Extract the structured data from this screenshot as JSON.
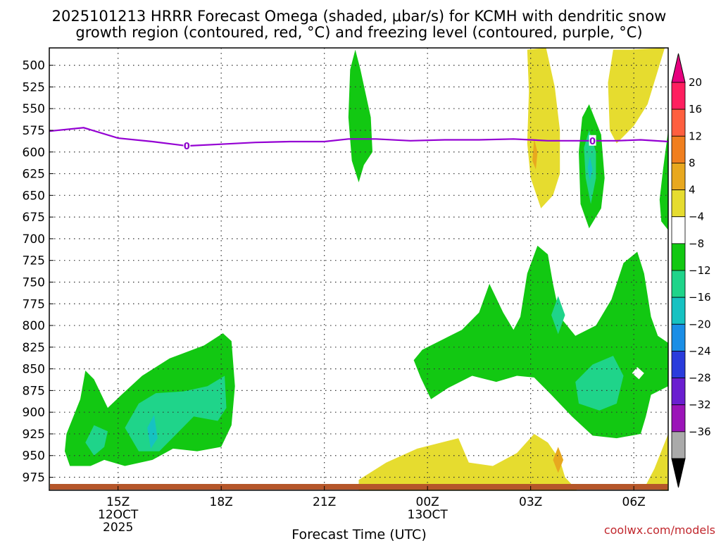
{
  "chart_data": {
    "type": "heatmap",
    "title_line1": "2025101213 HRRR Forecast Omega (shaded, μbar/s) for KCMH with dendritic snow",
    "title_line2": "growth region (contoured, red, °C) and freezing level (contoured, purple, °C)",
    "xlabel": "Forecast Time (UTC)",
    "credit": "coolwx.com/models",
    "x_ticks": [
      {
        "hour": 15,
        "label": "15Z",
        "sub1": "12OCT",
        "sub2": "2025"
      },
      {
        "hour": 18,
        "label": "18Z",
        "sub1": "",
        "sub2": ""
      },
      {
        "hour": 21,
        "label": "21Z",
        "sub1": "",
        "sub2": ""
      },
      {
        "hour": 24,
        "label": "00Z",
        "sub1": "13OCT",
        "sub2": ""
      },
      {
        "hour": 27,
        "label": "03Z",
        "sub1": "",
        "sub2": ""
      },
      {
        "hour": 30,
        "label": "06Z",
        "sub1": "",
        "sub2": ""
      }
    ],
    "x_range_hours": [
      13,
      31
    ],
    "y_range_hpa": [
      480,
      990
    ],
    "y_ticks": [
      500,
      525,
      550,
      575,
      600,
      625,
      650,
      675,
      700,
      725,
      750,
      775,
      800,
      825,
      850,
      875,
      900,
      925,
      950,
      975
    ],
    "colorbar": {
      "labels": [
        "20",
        "16",
        "12",
        "8",
        "4",
        "−4",
        "−8",
        "−12",
        "−16",
        "−20",
        "−24",
        "−28",
        "−32",
        "−36"
      ],
      "colors_top_to_bottom": [
        "#ff1f5f",
        "#ff5f3f",
        "#f07f1f",
        "#e8a81f",
        "#e6dc2f",
        "#ffffff",
        "#12c812",
        "#1fd48a",
        "#16c2c2",
        "#1a8ee6",
        "#2a3cdc",
        "#6a1fd0",
        "#9b14b8",
        "#aaaaaa"
      ],
      "top_arrow_color": "#e6007e",
      "bottom_arrow_color": "#000000"
    },
    "freezing_level": {
      "label": "0",
      "color": "#9400d3",
      "points": [
        [
          13.0,
          576
        ],
        [
          14.0,
          572
        ],
        [
          15.0,
          584
        ],
        [
          16.0,
          588
        ],
        [
          17.0,
          593
        ],
        [
          18.0,
          591
        ],
        [
          19.0,
          589
        ],
        [
          20.0,
          588
        ],
        [
          21.0,
          588
        ],
        [
          21.7,
          585
        ],
        [
          22.5,
          585
        ],
        [
          23.5,
          587
        ],
        [
          24.5,
          586
        ],
        [
          25.5,
          586
        ],
        [
          26.5,
          585
        ],
        [
          27.5,
          587
        ],
        [
          28.5,
          587
        ],
        [
          29.5,
          587
        ],
        [
          30.2,
          586
        ],
        [
          31.0,
          588
        ]
      ]
    },
    "ground_color": "#b5562a",
    "omega_regions": [
      {
        "kind": "green",
        "color": "#12c812",
        "points": [
          [
            13.5,
            925
          ],
          [
            13.9,
            885
          ],
          [
            14.05,
            852
          ],
          [
            14.3,
            862
          ],
          [
            14.7,
            895
          ],
          [
            15.1,
            880
          ],
          [
            15.7,
            858
          ],
          [
            16.5,
            838
          ],
          [
            17.5,
            823
          ],
          [
            18.05,
            809
          ],
          [
            18.3,
            818
          ],
          [
            18.4,
            870
          ],
          [
            18.3,
            915
          ],
          [
            18.0,
            940
          ],
          [
            17.3,
            945
          ],
          [
            16.6,
            942
          ],
          [
            16.0,
            955
          ],
          [
            15.2,
            962
          ],
          [
            14.6,
            955
          ],
          [
            14.2,
            962
          ],
          [
            13.6,
            962
          ],
          [
            13.45,
            945
          ]
        ]
      },
      {
        "kind": "med",
        "color": "#1fd48a",
        "points": [
          [
            14.3,
            915
          ],
          [
            14.7,
            922
          ],
          [
            14.6,
            940
          ],
          [
            14.3,
            950
          ],
          [
            14.05,
            935
          ]
        ]
      },
      {
        "kind": "med",
        "color": "#1fd48a",
        "points": [
          [
            15.2,
            918
          ],
          [
            15.6,
            890
          ],
          [
            16.1,
            878
          ],
          [
            16.9,
            876
          ],
          [
            17.6,
            870
          ],
          [
            18.1,
            858
          ],
          [
            18.15,
            895
          ],
          [
            17.9,
            910
          ],
          [
            17.2,
            905
          ],
          [
            16.7,
            925
          ],
          [
            16.2,
            945
          ],
          [
            15.6,
            945
          ]
        ]
      },
      {
        "kind": "cyan",
        "color": "#16c2c2",
        "points": [
          [
            15.85,
            918
          ],
          [
            16.05,
            903
          ],
          [
            16.15,
            930
          ],
          [
            15.95,
            942
          ]
        ]
      },
      {
        "kind": "green",
        "color": "#12c812",
        "points": [
          [
            21.9,
            482
          ],
          [
            22.05,
            505
          ],
          [
            22.35,
            560
          ],
          [
            22.4,
            600
          ],
          [
            22.15,
            615
          ],
          [
            22.0,
            635
          ],
          [
            21.8,
            610
          ],
          [
            21.7,
            560
          ],
          [
            21.75,
            505
          ]
        ]
      },
      {
        "kind": "green",
        "color": "#12c812",
        "points": [
          [
            23.6,
            840
          ],
          [
            23.85,
            828
          ],
          [
            24.5,
            815
          ],
          [
            25.0,
            805
          ],
          [
            25.5,
            785
          ],
          [
            25.8,
            752
          ],
          [
            26.2,
            785
          ],
          [
            26.5,
            805
          ],
          [
            26.7,
            790
          ],
          [
            26.9,
            740
          ],
          [
            27.2,
            708
          ],
          [
            27.5,
            718
          ],
          [
            27.65,
            752
          ],
          [
            27.85,
            790
          ],
          [
            28.3,
            812
          ],
          [
            28.9,
            800
          ],
          [
            29.35,
            770
          ],
          [
            29.7,
            728
          ],
          [
            30.1,
            715
          ],
          [
            30.3,
            740
          ],
          [
            30.5,
            790
          ],
          [
            30.7,
            812
          ],
          [
            31.0,
            820
          ],
          [
            31.0,
            870
          ],
          [
            30.75,
            875
          ],
          [
            30.5,
            880
          ],
          [
            30.35,
            905
          ],
          [
            30.2,
            925
          ],
          [
            29.5,
            930
          ],
          [
            28.8,
            927
          ],
          [
            28.2,
            905
          ],
          [
            27.6,
            880
          ],
          [
            27.1,
            860
          ],
          [
            26.6,
            858
          ],
          [
            26.0,
            865
          ],
          [
            25.3,
            858
          ],
          [
            24.6,
            872
          ],
          [
            24.1,
            885
          ],
          [
            23.8,
            860
          ]
        ]
      },
      {
        "kind": "med",
        "color": "#1fd48a",
        "points": [
          [
            27.8,
            766
          ],
          [
            28.0,
            788
          ],
          [
            27.8,
            810
          ],
          [
            27.6,
            788
          ]
        ]
      },
      {
        "kind": "med",
        "color": "#1fd48a",
        "points": [
          [
            28.3,
            865
          ],
          [
            28.8,
            845
          ],
          [
            29.4,
            835
          ],
          [
            29.7,
            858
          ],
          [
            29.5,
            890
          ],
          [
            29.0,
            898
          ],
          [
            28.4,
            890
          ]
        ]
      },
      {
        "kind": "white",
        "color": "#ffffff",
        "points": [
          [
            30.1,
            848
          ],
          [
            30.3,
            855
          ],
          [
            30.15,
            862
          ],
          [
            29.95,
            855
          ]
        ]
      },
      {
        "kind": "green",
        "color": "#12c812",
        "points": [
          [
            28.7,
            545
          ],
          [
            29.05,
            580
          ],
          [
            29.15,
            630
          ],
          [
            29.05,
            665
          ],
          [
            28.7,
            688
          ],
          [
            28.45,
            660
          ],
          [
            28.4,
            600
          ],
          [
            28.5,
            560
          ]
        ]
      },
      {
        "kind": "med",
        "color": "#1fd48a",
        "points": [
          [
            28.7,
            575
          ],
          [
            28.9,
            600
          ],
          [
            28.9,
            630
          ],
          [
            28.75,
            660
          ],
          [
            28.6,
            630
          ],
          [
            28.55,
            595
          ]
        ]
      },
      {
        "kind": "cyan",
        "color": "#16c2c2",
        "points": [
          [
            28.72,
            605
          ],
          [
            28.8,
            620
          ],
          [
            28.72,
            633
          ],
          [
            28.66,
            618
          ]
        ]
      },
      {
        "kind": "green",
        "color": "#12c812",
        "points": [
          [
            31.0,
            575
          ],
          [
            30.85,
            620
          ],
          [
            30.75,
            655
          ],
          [
            30.8,
            680
          ],
          [
            31.0,
            690
          ]
        ]
      },
      {
        "kind": "yellow",
        "color": "#e6dc2f",
        "points": [
          [
            26.9,
            482
          ],
          [
            27.45,
            480
          ],
          [
            27.7,
            525
          ],
          [
            27.85,
            575
          ],
          [
            27.85,
            625
          ],
          [
            27.65,
            650
          ],
          [
            27.3,
            665
          ],
          [
            27.0,
            630
          ],
          [
            26.9,
            590
          ],
          [
            26.95,
            530
          ]
        ]
      },
      {
        "kind": "orange",
        "color": "#e8a81f",
        "points": [
          [
            27.1,
            585
          ],
          [
            27.2,
            600
          ],
          [
            27.15,
            620
          ],
          [
            27.05,
            610
          ]
        ]
      },
      {
        "kind": "yellow",
        "color": "#e6dc2f",
        "points": [
          [
            29.9,
            482
          ],
          [
            30.9,
            480
          ],
          [
            30.4,
            545
          ],
          [
            30.0,
            570
          ],
          [
            29.5,
            590
          ],
          [
            29.3,
            575
          ],
          [
            29.25,
            520
          ],
          [
            29.4,
            482
          ]
        ]
      },
      {
        "kind": "yellow",
        "color": "#e6dc2f",
        "points": [
          [
            22.0,
            978
          ],
          [
            22.8,
            958
          ],
          [
            23.7,
            942
          ],
          [
            24.9,
            930
          ],
          [
            25.2,
            958
          ],
          [
            25.9,
            962
          ],
          [
            26.6,
            947
          ],
          [
            27.1,
            925
          ],
          [
            27.5,
            935
          ],
          [
            27.85,
            955
          ],
          [
            28.0,
            975
          ],
          [
            28.35,
            990
          ],
          [
            22.0,
            990
          ]
        ]
      },
      {
        "kind": "orange",
        "color": "#e8a81f",
        "points": [
          [
            27.8,
            940
          ],
          [
            27.95,
            955
          ],
          [
            27.8,
            970
          ],
          [
            27.65,
            955
          ]
        ]
      },
      {
        "kind": "yellow",
        "color": "#e6dc2f",
        "points": [
          [
            31.0,
            925
          ],
          [
            30.6,
            965
          ],
          [
            30.3,
            988
          ],
          [
            31.0,
            990
          ]
        ]
      }
    ]
  }
}
